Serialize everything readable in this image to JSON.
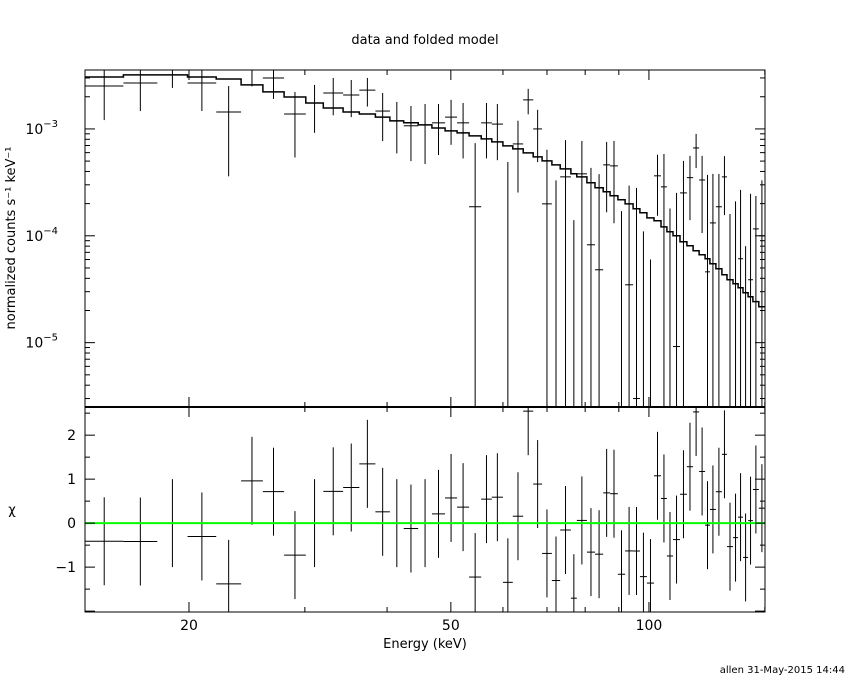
{
  "chart_data": [
    {
      "type": "scatter",
      "panel": "top",
      "title": "data and folded model",
      "xlabel": "Energy (keV)",
      "ylabel": "normalized counts s⁻¹ keV⁻¹",
      "xscale": "log",
      "yscale": "log",
      "xlim": [
        13.9,
        150.1
      ],
      "ylim": [
        2.5e-06,
        0.00356
      ],
      "x_tick_labels": [
        {
          "value": 20,
          "label": "20"
        },
        {
          "value": 50,
          "label": "50"
        },
        {
          "value": 100,
          "label": "100"
        }
      ],
      "y_tick_labels": [
        {
          "value": 0.001,
          "base": "10",
          "exp": "−3"
        },
        {
          "value": 0.0001,
          "base": "10",
          "exp": "−4"
        },
        {
          "value": 1e-05,
          "base": "10",
          "exp": "−5"
        }
      ],
      "grid": false,
      "series_columns": [
        "energy_low",
        "energy_high",
        "data",
        "data_error",
        "model"
      ],
      "bins": [
        [
          13.9,
          15.9,
          0.00252,
          0.00131,
          0.00306
        ],
        [
          15.9,
          17.9,
          0.00269,
          0.00122,
          0.0032
        ],
        [
          17.9,
          19.9,
          0.0032,
          0.00078,
          0.0032
        ],
        [
          19.9,
          22.0,
          0.00269,
          0.00122,
          0.00306
        ],
        [
          22.0,
          24.0,
          0.00144,
          0.00108,
          0.00293
        ],
        [
          24.0,
          25.9,
          0.0046,
          0.0021,
          0.00258
        ],
        [
          25.9,
          27.9,
          0.003,
          0.00109,
          0.00222
        ],
        [
          27.9,
          30.1,
          0.00138,
          0.00084,
          0.00199
        ],
        [
          30.1,
          32.0,
          0.00175,
          0.00083,
          0.00175
        ],
        [
          32.0,
          34.3,
          0.00217,
          0.00083,
          0.00157
        ],
        [
          34.3,
          36.3,
          0.00208,
          0.00079,
          0.00144
        ],
        [
          36.3,
          38.4,
          0.00231,
          0.00069,
          0.00138
        ],
        [
          38.4,
          40.4,
          0.00147,
          0.0007,
          0.00129
        ],
        [
          40.4,
          42.4,
          0.00119,
          0.0006,
          0.00119
        ],
        [
          42.4,
          44.6,
          0.00107,
          0.00057,
          0.00114
        ],
        [
          44.6,
          46.8,
          0.00109,
          0.00062,
          0.00109
        ],
        [
          46.8,
          49.0,
          0.00114,
          0.00057,
          0.00102
        ],
        [
          49.0,
          51.1,
          0.00129,
          0.00058,
          0.000958
        ],
        [
          51.1,
          53.3,
          0.00114,
          0.00061,
          0.000918
        ],
        [
          53.3,
          55.6,
          0.000187,
          0.00055,
          0.000861
        ],
        [
          55.6,
          57.7,
          0.00114,
          0.00061,
          0.000807
        ],
        [
          57.7,
          60.0,
          0.00111,
          0.0006,
          0.000756
        ],
        [
          60.0,
          62.1,
          -0.0001,
          0.00059,
          0.000694
        ],
        [
          62.1,
          64.4,
          0.000724,
          0.00047,
          0.00065
        ],
        [
          64.4,
          66.7,
          0.00187,
          0.0005,
          0.000597
        ],
        [
          66.7,
          68.8,
          0.001,
          0.00051,
          0.000547
        ],
        [
          68.8,
          71.2,
          0.000199,
          0.00044,
          0.000502
        ],
        [
          71.2,
          73.3,
          -0.0001,
          0.00043,
          0.000461
        ],
        [
          73.3,
          76.1,
          0.000356,
          0.00043,
          0.000423
        ],
        [
          76.1,
          77.7,
          -0.0002,
          0.00034,
          0.00038
        ],
        [
          77.7,
          80.5,
          0.00038,
          0.00039,
          0.000356
        ],
        [
          80.5,
          82.8,
          8.24e-05,
          0.00035,
          0.000313
        ],
        [
          82.8,
          85.2,
          4.81e-05,
          0.00033,
          0.000281
        ],
        [
          85.2,
          87.3,
          0.000461,
          0.000295,
          0.000258
        ],
        [
          87.3,
          89.7,
          0.000451,
          0.00032,
          0.000237
        ],
        [
          89.7,
          92.0,
          -0.00012,
          0.00029,
          0.000217
        ],
        [
          92.0,
          94.6,
          3.48e-05,
          0.00026,
          0.000199
        ],
        [
          94.6,
          96.9,
          3e-06,
          0.000278,
          0.000179
        ],
        [
          96.9,
          99.3,
          -0.00014,
          0.00025,
          0.000164
        ],
        [
          99.3,
          101.8,
          -0.00018,
          0.00024,
          0.000147
        ],
        [
          101.8,
          104.3,
          0.000364,
          0.00021,
          0.000138
        ],
        [
          104.3,
          106.5,
          0.000287,
          0.000296,
          0.000121
        ],
        [
          106.5,
          108.8,
          -0.0001,
          0.00028,
          0.000109
        ],
        [
          108.8,
          111.5,
          9.2e-06,
          0.000243,
          0.0001
        ],
        [
          111.5,
          114.2,
          0.000252,
          0.00025,
          8.79e-05
        ],
        [
          114.2,
          116.7,
          0.00035,
          0.00021,
          8.07e-05
        ],
        [
          116.7,
          119.2,
          0.000664,
          0.000234,
          7.24e-05
        ],
        [
          119.2,
          121.7,
          0.000333,
          0.000227,
          6.64e-05
        ],
        [
          121.7,
          123.8,
          4.6e-05,
          0.000326,
          6.1e-05
        ],
        [
          123.8,
          126.4,
          0.000132,
          0.000248,
          5.47e-05
        ],
        [
          126.4,
          129.1,
          0.000187,
          0.000193,
          4.92e-05
        ],
        [
          129.1,
          131.4,
          0.000356,
          0.0002,
          4.32e-05
        ],
        [
          131.4,
          134.2,
          -0.0001,
          0.00026,
          3.88e-05
        ],
        [
          134.2,
          136.6,
          -5e-05,
          0.00026,
          3.56e-05
        ],
        [
          136.6,
          139.0,
          6.1e-05,
          0.000208,
          3.27e-05
        ],
        [
          139.0,
          141.5,
          -0.00015,
          0.00023,
          2.93e-05
        ],
        [
          141.5,
          143.9,
          3.88e-05,
          0.000208,
          2.69e-05
        ],
        [
          143.9,
          146.9,
          0.000116,
          0.00012,
          2.42e-05
        ],
        [
          146.9,
          150.1,
          0.0001,
          0.00023,
          2.17e-05
        ]
      ]
    },
    {
      "type": "scatter",
      "panel": "bottom",
      "ylabel": "χ",
      "xlabel": "Energy (keV)",
      "xscale": "log",
      "xlim": [
        13.9,
        150.1
      ],
      "ylim": [
        -2.02,
        2.64
      ],
      "y_tick_labels": [
        {
          "value": -1,
          "label": "−1"
        },
        {
          "value": 0,
          "label": "0"
        },
        {
          "value": 1,
          "label": "1"
        },
        {
          "value": 2,
          "label": "2"
        }
      ],
      "residuals": "(data - model) / data_error from the top panel bins, error ±1",
      "zero_line_color": "#00ff00"
    }
  ],
  "footer": {
    "stamp": "allen 31-May-2015 14:44"
  }
}
